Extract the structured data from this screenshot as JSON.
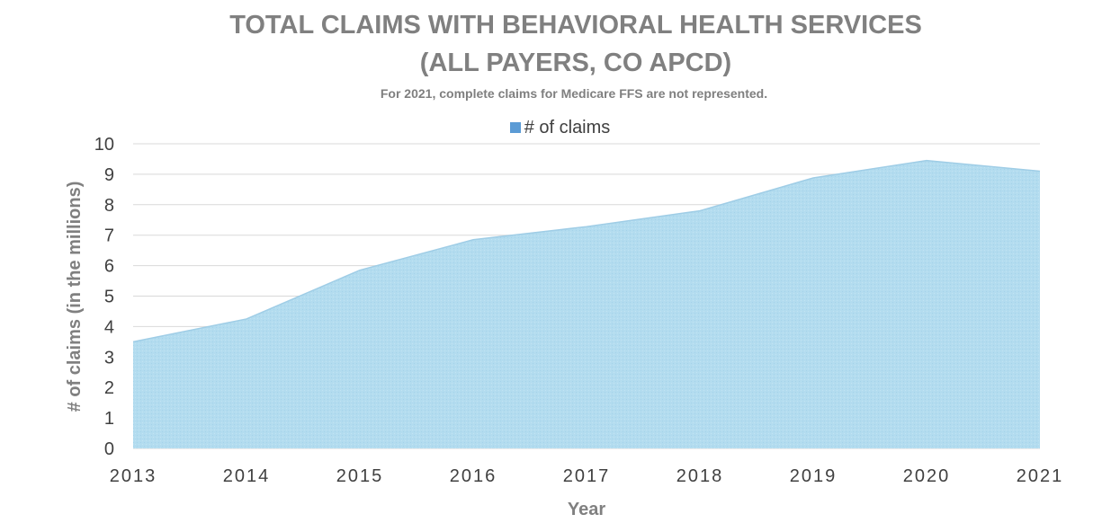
{
  "chart_data": {
    "type": "area",
    "title": "TOTAL CLAIMS WITH BEHAVIORAL HEALTH SERVICES",
    "title_line2": "(ALL PAYERS, CO APCD)",
    "subtitle": "For 2021, complete claims for Medicare FFS are not represented.",
    "xlabel": "Year",
    "ylabel": "# of claims (in the millions)",
    "ylim": [
      0,
      10
    ],
    "yticks": [
      "0",
      "1",
      "2",
      "3",
      "4",
      "5",
      "6",
      "7",
      "8",
      "9",
      "10"
    ],
    "categories": [
      "2013",
      "2014",
      "2015",
      "2016",
      "2017",
      "2018",
      "2019",
      "2020",
      "2021"
    ],
    "series": [
      {
        "name": "# of claims",
        "values": [
          3.5,
          4.25,
          5.85,
          6.85,
          7.28,
          7.8,
          8.88,
          9.45,
          9.1
        ]
      }
    ],
    "legend_position": "top",
    "grid": true,
    "colors": {
      "fill": "#b3dcef",
      "stroke": "#9fcde6",
      "legend": "#5b9bd5",
      "grid": "#d9d9d9",
      "title": "#808080"
    }
  }
}
